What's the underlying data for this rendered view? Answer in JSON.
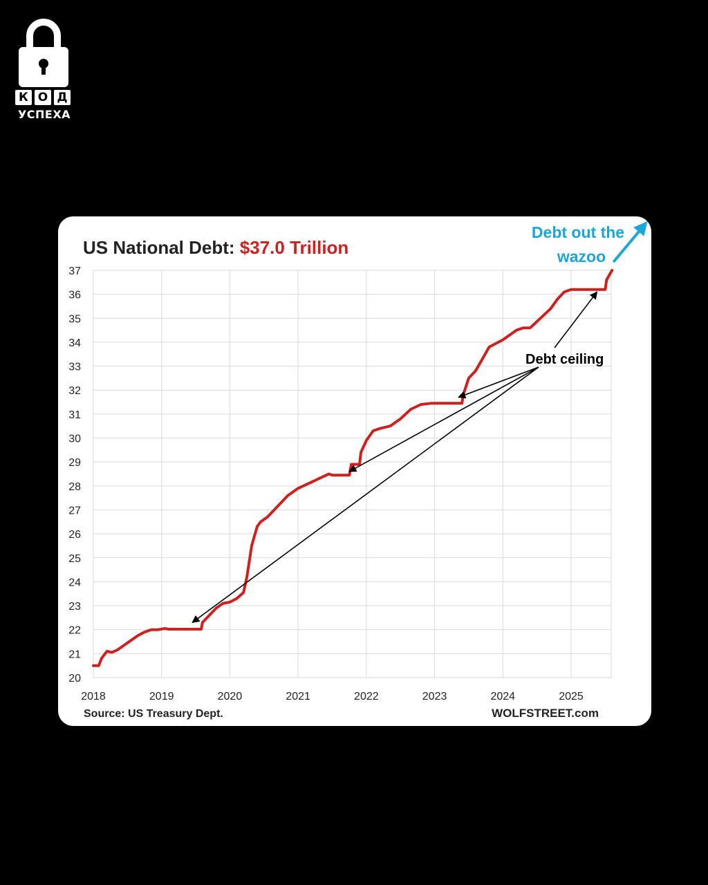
{
  "logo": {
    "letters": [
      "К",
      "О",
      "Д"
    ],
    "subtitle": "УСПЕХА"
  },
  "chart_data": {
    "type": "line",
    "title_prefix": "US National Debt: ",
    "title_value": "$37.0 Trillion",
    "title_value_color": "#d0201e",
    "line_color": "#d0201e",
    "xlim": [
      2018,
      2025.6
    ],
    "ylim": [
      20,
      37
    ],
    "x_ticks": [
      2018,
      2019,
      2020,
      2021,
      2022,
      2023,
      2024,
      2025
    ],
    "x_tick_labels": [
      "2018",
      "2019",
      "2020",
      "2021",
      "2022",
      "2023",
      "2024",
      "2025"
    ],
    "y_ticks": [
      20,
      21,
      22,
      23,
      24,
      25,
      26,
      27,
      28,
      29,
      30,
      31,
      32,
      33,
      34,
      35,
      36,
      37
    ],
    "y_tick_labels": [
      "20",
      "21",
      "22",
      "23",
      "24",
      "25",
      "26",
      "27",
      "28",
      "29",
      "30",
      "31",
      "32",
      "33",
      "34",
      "35",
      "36",
      "37"
    ],
    "grid": true,
    "series": [
      {
        "x": [
          2018.0,
          2018.08,
          2018.12,
          2018.2,
          2018.27,
          2018.35,
          2018.45,
          2018.55,
          2018.65,
          2018.75,
          2018.85,
          2018.95,
          2019.05,
          2019.1,
          2019.15,
          2019.58,
          2019.6,
          2019.7,
          2019.8,
          2019.9,
          2020.0,
          2020.1,
          2020.2,
          2020.25,
          2020.32,
          2020.4,
          2020.45,
          2020.55,
          2020.65,
          2020.75,
          2020.85,
          2021.0,
          2021.15,
          2021.3,
          2021.45,
          2021.5,
          2021.55,
          2021.75,
          2021.78,
          2021.9,
          2021.92,
          2022.0,
          2022.1,
          2022.2,
          2022.35,
          2022.5,
          2022.65,
          2022.8,
          2022.95,
          2023.1,
          2023.2,
          2023.4,
          2023.42,
          2023.5,
          2023.6,
          2023.7,
          2023.8,
          2024.0,
          2024.2,
          2024.3,
          2024.4,
          2024.55,
          2024.7,
          2024.8,
          2024.9,
          2025.0,
          2025.5,
          2025.52,
          2025.6
        ],
        "y": [
          20.5,
          20.5,
          20.8,
          21.1,
          21.05,
          21.15,
          21.35,
          21.55,
          21.75,
          21.9,
          22.0,
          22.0,
          22.05,
          22.02,
          22.02,
          22.02,
          22.3,
          22.6,
          22.9,
          23.1,
          23.15,
          23.3,
          23.55,
          24.2,
          25.5,
          26.3,
          26.5,
          26.7,
          27.0,
          27.3,
          27.6,
          27.9,
          28.1,
          28.3,
          28.5,
          28.45,
          28.45,
          28.45,
          28.9,
          28.9,
          29.4,
          29.9,
          30.3,
          30.4,
          30.5,
          30.8,
          31.2,
          31.4,
          31.45,
          31.45,
          31.45,
          31.45,
          31.8,
          32.5,
          32.8,
          33.3,
          33.8,
          34.1,
          34.5,
          34.6,
          34.6,
          35.0,
          35.4,
          35.8,
          36.1,
          36.2,
          36.2,
          36.6,
          37.0
        ]
      }
    ],
    "annotations": {
      "debt_ceiling_label": "Debt ceiling",
      "wazoo_line1": "Debt out the",
      "wazoo_line2": "wazoo",
      "wazoo_color": "#1aa6d8",
      "ceiling_points": [
        {
          "x": 2019.45,
          "y": 22.3
        },
        {
          "x": 2021.75,
          "y": 28.6
        },
        {
          "x": 2023.35,
          "y": 31.7
        },
        {
          "x": 2025.38,
          "y": 36.1
        }
      ]
    },
    "source": "Source: US Treasury Dept.",
    "credit": "WOLFSTREET.com"
  }
}
